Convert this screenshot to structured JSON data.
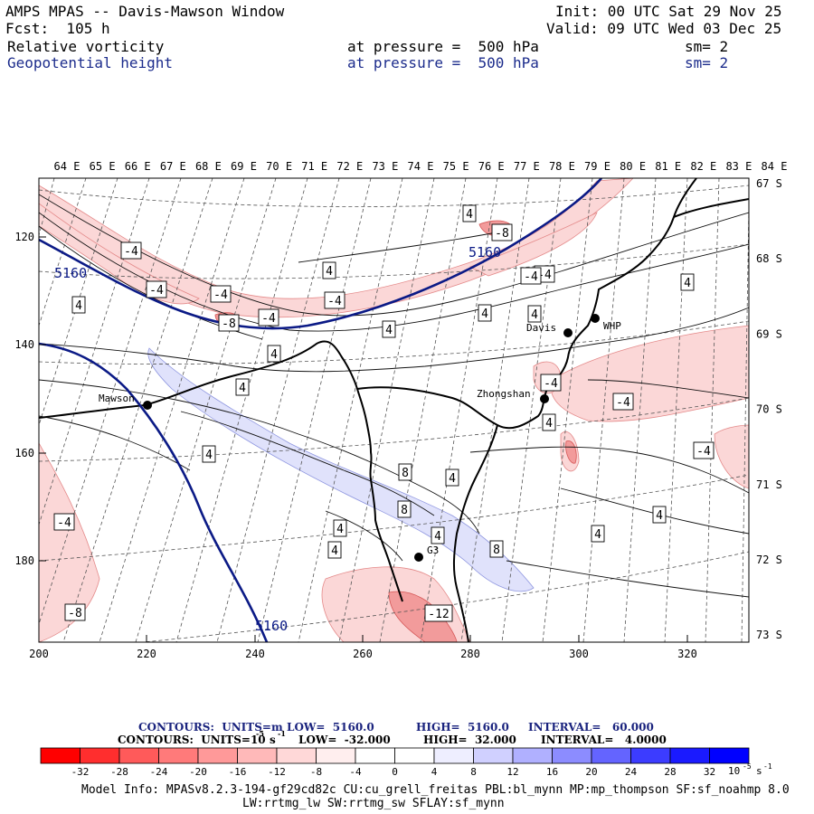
{
  "header": {
    "title": "AMPS MPAS -- Davis-Mawson Window",
    "fcst": "Fcst:  105 h",
    "init": "Init: 00 UTC Sat 29 Nov 25",
    "valid": "Valid: 09 UTC Wed 03 Dec 25",
    "field1": {
      "name": "Relative vorticity",
      "pressure": "at pressure =  500 hPa",
      "sm": "sm= 2"
    },
    "field2": {
      "name": "Geopotential height",
      "pressure": "at pressure =  500 hPa",
      "sm": "sm= 2"
    }
  },
  "map": {
    "top_longitudes": [
      "64 E",
      "65 E",
      "66 E",
      "67 E",
      "68 E",
      "69 E",
      "70 E",
      "71 E",
      "72 E",
      "73 E",
      "74 E",
      "75 E",
      "76 E",
      "77 E",
      "78 E",
      "79 E",
      "80 E",
      "81 E",
      "82 E",
      "83 E",
      "84 E"
    ],
    "right_latitudes": [
      "67 S",
      "68 S",
      "69 S",
      "70 S",
      "71 S",
      "72 S",
      "73 S"
    ],
    "left_ticks": [
      "120",
      "140",
      "160",
      "180"
    ],
    "bottom_ticks": [
      "200",
      "220",
      "240",
      "260",
      "280",
      "300",
      "320"
    ],
    "stations": [
      {
        "name": "Mawson"
      },
      {
        "name": "Davis"
      },
      {
        "name": "WHP"
      },
      {
        "name": "Zhongshan"
      },
      {
        "name": "G3"
      }
    ],
    "height_labels": [
      "5160",
      "5160",
      "5160"
    ],
    "vort_labels": [
      "4",
      "-8",
      "-4",
      "-4",
      "-4",
      "4",
      "-4",
      "4",
      "-4",
      "-8",
      "-4",
      "4",
      "4",
      "4",
      "4",
      "-4",
      "-4",
      "4",
      "4",
      "-4",
      "-4",
      "4",
      "8",
      "4",
      "8",
      "4",
      "8",
      "4",
      "-4",
      "4",
      "4",
      "-12",
      "-8",
      "4",
      "4"
    ]
  },
  "contours_info": {
    "line1": {
      "label": "CONTOURS:  UNITS=m",
      "low": "LOW=  5160.0",
      "high": "HIGH=  5160.0",
      "interval": "INTERVAL=   60.000"
    },
    "line2": {
      "label": "CONTOURS:  UNITS=10",
      "exp": "-5",
      "unit": "s",
      "uexp": "-1",
      "low": "LOW=  -32.000",
      "high": "HIGH=  32.000",
      "interval": "INTERVAL=   4.0000"
    }
  },
  "colorbar": {
    "colors": [
      "#ff0000",
      "#ff2e2e",
      "#ff5a5a",
      "#ff7a7a",
      "#ff9999",
      "#ffb9b9",
      "#ffd8d8",
      "#ffeeee",
      "#ffffff",
      "#ffffff",
      "#eeeeff",
      "#d0d0ff",
      "#b0b0ff",
      "#8c8cff",
      "#6464ff",
      "#3c3cff",
      "#1a1aff",
      "#0000ff"
    ],
    "tick_labels": [
      "-32",
      "-28",
      "-24",
      "-20",
      "-16",
      "-12",
      "-8",
      "-4",
      "0",
      "4",
      "8",
      "12",
      "16",
      "20",
      "24",
      "28",
      "32"
    ],
    "unit": "10",
    "unit_exp": "-5",
    "unit_s": "s",
    "unit_s_exp": "-1"
  },
  "model_info": {
    "line1": "Model Info: MPASv8.2.3-194-gf29cd82c CU:cu_grell_freitas PBL:bl_mynn MP:mp_thompson SF:sf_noahmp 8.0",
    "line2": "LW:rrtmg_lw SW:rrtmg_sw SFLAY:sf_mynn"
  },
  "colors": {
    "height_contour": "#0b1a86",
    "coast": "#000000",
    "neg_shade": "#fbd7d7",
    "pos_shade": "#e0e2fb",
    "strong_neg": "#f29b9b"
  }
}
